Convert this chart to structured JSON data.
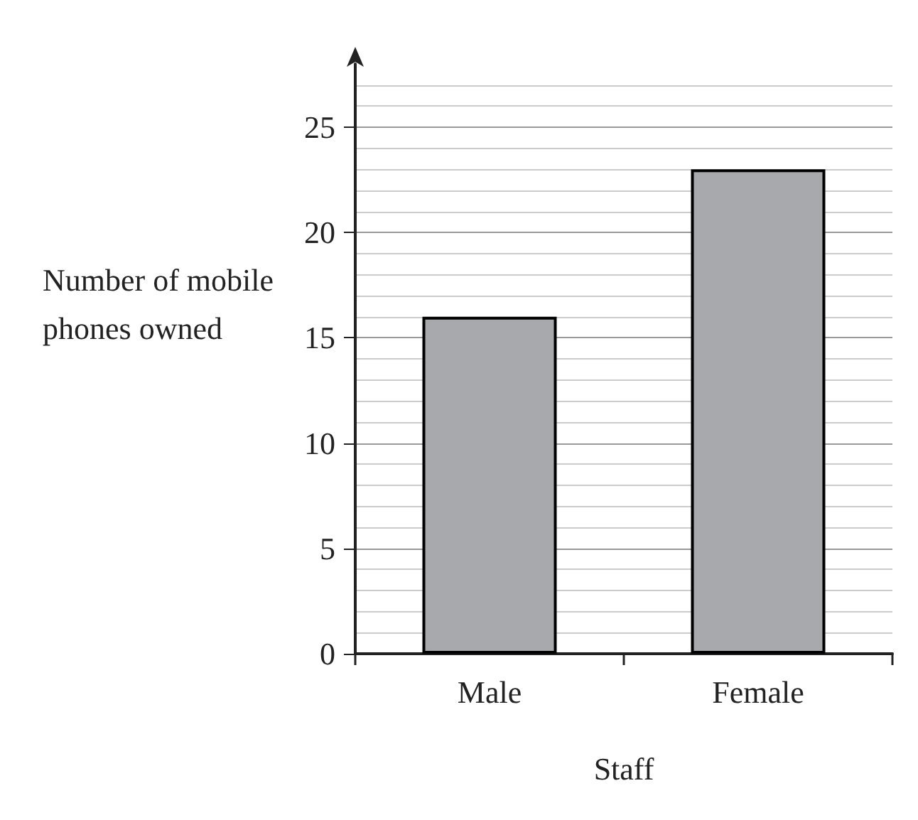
{
  "chart_data": {
    "type": "bar",
    "xlabel": "Staff",
    "ylabel": "Number of mobile phones owned",
    "categories": [
      "Male",
      "Female"
    ],
    "values": [
      16,
      23
    ],
    "color": "#a7a9ac",
    "ylim": [
      0,
      28
    ],
    "yticks": [
      0,
      5,
      10,
      15,
      20,
      25
    ],
    "grid": "y"
  }
}
